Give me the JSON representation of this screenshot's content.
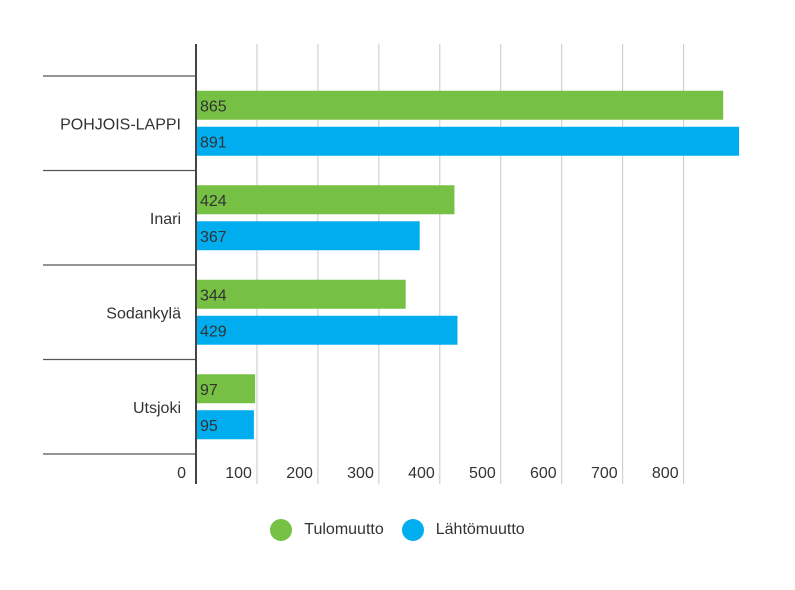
{
  "chart_data": {
    "type": "bar",
    "orientation": "horizontal",
    "categories": [
      "POHJOIS-LAPPI",
      "Inari",
      "Sodankylä",
      "Utsjoki"
    ],
    "series": [
      {
        "name": "Tulomuutto",
        "values": [
          865,
          424,
          344,
          97
        ],
        "color": "#76c043"
      },
      {
        "name": "Lähtömuutto",
        "values": [
          891,
          367,
          429,
          95
        ],
        "color": "#00aeef"
      }
    ],
    "x_ticks": [
      0,
      100,
      200,
      300,
      400,
      500,
      600,
      700,
      800
    ],
    "xlim": [
      0,
      900
    ],
    "grid": true,
    "legend_position": "bottom"
  }
}
